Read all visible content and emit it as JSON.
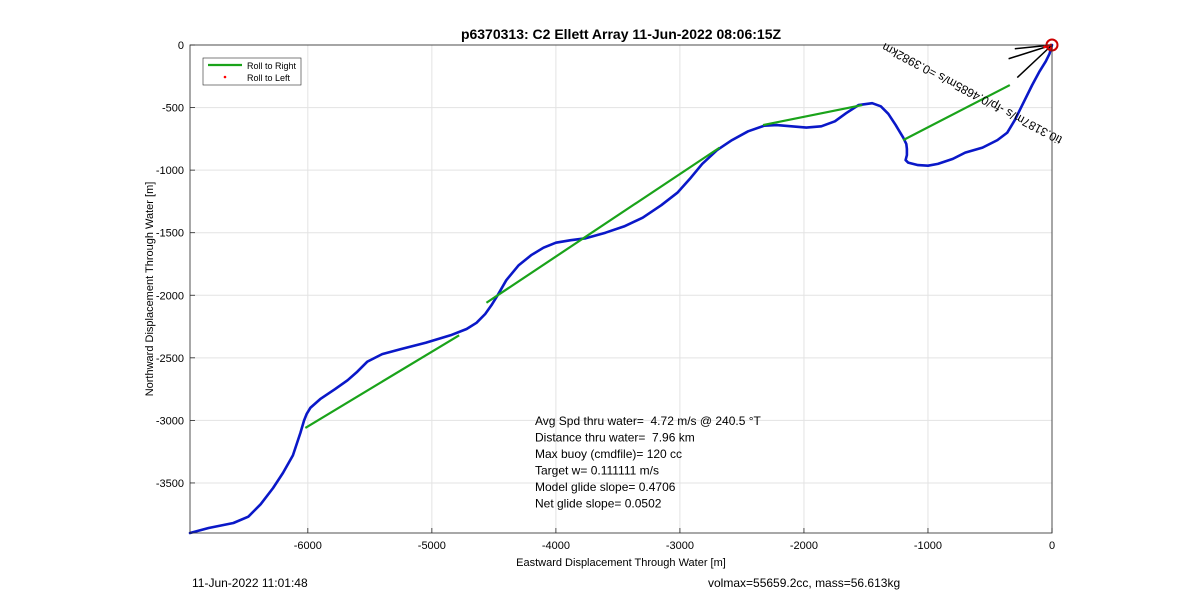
{
  "chart_data": {
    "type": "line",
    "title": "p6370313: C2 Ellett Array 11-Jun-2022 08:06:15Z",
    "xlabel": "Eastward Displacement Through Water [m]",
    "ylabel": "Northward Displacement Through Water [m]",
    "xlim": [
      -6950,
      0
    ],
    "ylim": [
      -3900,
      0
    ],
    "xticks": [
      -6000,
      -5000,
      -4000,
      -3000,
      -2000,
      -1000,
      0
    ],
    "yticks": [
      0,
      -500,
      -1000,
      -1500,
      -2000,
      -2500,
      -3000,
      -3500
    ],
    "grid": true,
    "legend_position": "top-left",
    "legend": [
      {
        "label": "Roll to Right",
        "color": "#1aa31a",
        "style": "line"
      },
      {
        "label": "Roll to Left",
        "color": "#ff0000",
        "style": "dot"
      }
    ],
    "series": [
      {
        "color": "#0a18c8",
        "x": [
          -6950,
          -6800,
          -6600,
          -6480,
          -6380,
          -6280,
          -6200,
          -6120,
          -6060,
          -6030,
          -6010,
          -5980,
          -5900,
          -5780,
          -5680,
          -5600,
          -5520,
          -5400,
          -5250,
          -5050,
          -4850,
          -4720,
          -4640,
          -4570,
          -4520,
          -4470,
          -4400,
          -4300,
          -4200,
          -4100,
          -4000,
          -3880,
          -3760,
          -3600,
          -3450,
          -3300,
          -3150,
          -3020,
          -2920,
          -2820,
          -2700,
          -2580,
          -2450,
          -2320,
          -2220,
          -2100,
          -1980,
          -1860,
          -1750,
          -1660,
          -1560,
          -1450,
          -1380,
          -1320,
          -1260,
          -1200,
          -1175,
          -1170,
          -1170,
          -1180,
          -1160,
          -1080,
          -1000,
          -920,
          -800,
          -700,
          -560,
          -440,
          -360,
          -300,
          -230,
          -160,
          -100,
          -50,
          -20,
          0
        ],
        "y": [
          -3900,
          -3860,
          -3820,
          -3770,
          -3670,
          -3540,
          -3420,
          -3280,
          -3100,
          -3000,
          -2950,
          -2900,
          -2830,
          -2750,
          -2680,
          -2610,
          -2530,
          -2470,
          -2430,
          -2380,
          -2320,
          -2270,
          -2220,
          -2150,
          -2080,
          -2000,
          -1880,
          -1760,
          -1680,
          -1620,
          -1580,
          -1560,
          -1545,
          -1500,
          -1450,
          -1380,
          -1280,
          -1180,
          -1070,
          -950,
          -840,
          -760,
          -690,
          -645,
          -640,
          -650,
          -660,
          -650,
          -610,
          -545,
          -480,
          -465,
          -490,
          -550,
          -640,
          -740,
          -790,
          -830,
          -880,
          -920,
          -940,
          -960,
          -965,
          -950,
          -910,
          -860,
          -820,
          -760,
          -700,
          -600,
          -460,
          -320,
          -210,
          -130,
          -70,
          0
        ]
      }
    ],
    "rollRight": [
      {
        "x": [
          -6020,
          -4780
        ],
        "y": [
          -3060,
          -2320
        ]
      },
      {
        "x": [
          -4560,
          -2680
        ],
        "y": [
          -2060,
          -820
        ]
      },
      {
        "x": [
          -2330,
          -1530
        ],
        "y": [
          -640,
          -480
        ]
      },
      {
        "x": [
          -1200,
          -340
        ],
        "y": [
          -760,
          -320
        ]
      }
    ],
    "rollLeft": {
      "x": [
        -60,
        -30,
        -10,
        -5
      ],
      "y": [
        -15,
        -5,
        0,
        -25
      ]
    },
    "heading_lines": [
      {
        "x": [
          -300,
          0
        ],
        "y": [
          -30,
          0
        ]
      },
      {
        "x": [
          -350,
          0
        ],
        "y": [
          -110,
          0
        ]
      },
      {
        "x": [
          -280,
          0
        ],
        "y": [
          -260,
          0
        ]
      }
    ],
    "marker": {
      "x": 0,
      "y": 0,
      "color": "#cc0000"
    },
    "rotated_label": {
      "text": "ti0.3187m/s -fp/0.4685m/s =0.3982km",
      "x": -630,
      "y": -360,
      "angle": 28
    },
    "annotations": [
      "Avg Spd thru water=  4.72 m/s @ 240.5 °T",
      "Distance thru water=  7.96 km",
      "Max buoy (cmdfile)= 120 cc",
      "Target w= 0.111111 m/s",
      "Model glide slope= 0.4706",
      "Net glide slope= 0.0502"
    ]
  },
  "footer": {
    "left": "11-Jun-2022 11:01:48",
    "right": "volmax=55659.2cc, mass=56.613kg"
  }
}
